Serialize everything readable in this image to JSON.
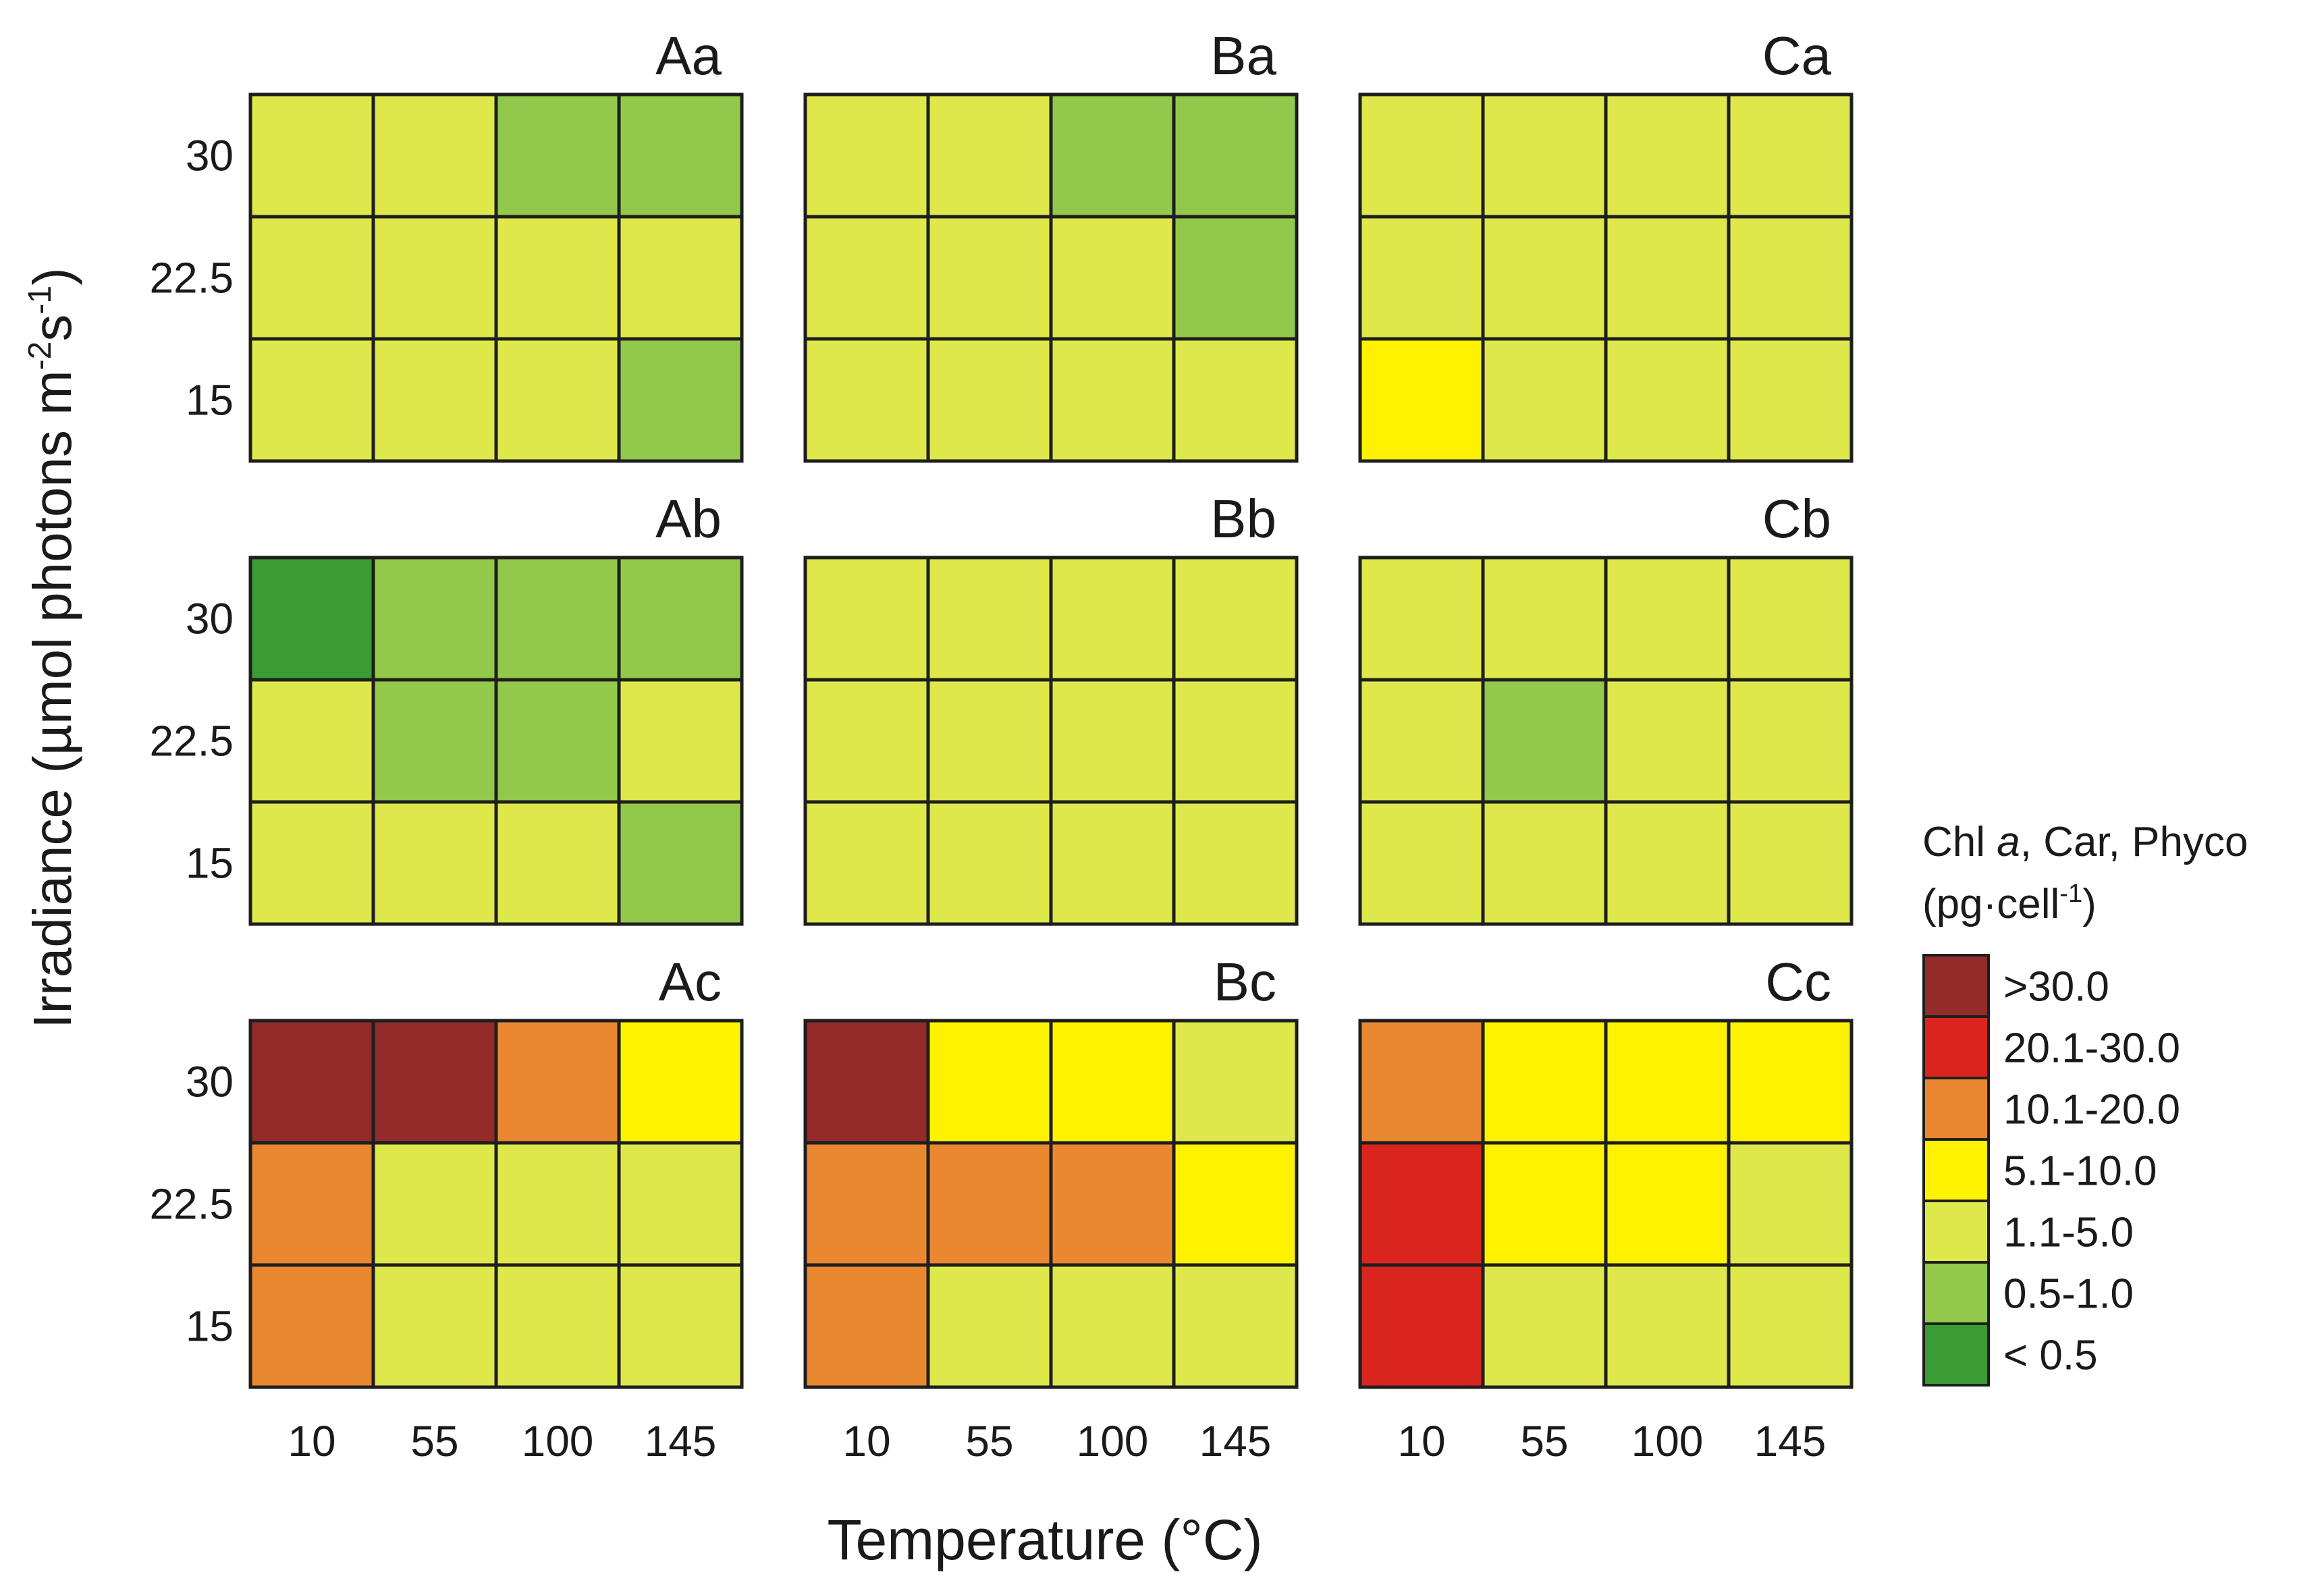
{
  "chart_data": {
    "type": "heatmap",
    "xlabel": "Temperature (°C)",
    "ylabel": {
      "main": "Irradiance (µmol photons m",
      "sup1": "-2",
      "mid": "s",
      "sup2": "-1",
      "end": ")"
    },
    "x_ticks": [
      "10",
      "55",
      "100",
      "145"
    ],
    "y_ticks": [
      "30",
      "22.5",
      "15"
    ],
    "legend": {
      "title_line1": {
        "pre": "Chl ",
        "italic": "a",
        "post": ", Car, Phyco"
      },
      "title_line2": {
        "pre": "(pg·cell",
        "sup": "-1",
        "post": ")"
      },
      "classes": [
        {
          "label": ">30.0",
          "color": "#922b2a"
        },
        {
          "label": "20.1-30.0",
          "color": "#d9251e"
        },
        {
          "label": "10.1-20.0",
          "color": "#e98831"
        },
        {
          "label": "5.1-10.0",
          "color": "#fff200"
        },
        {
          "label": "1.1-5.0",
          "color": "#dfe84b"
        },
        {
          "label": "0.5-1.0",
          "color": "#92c94a"
        },
        {
          "label": "< 0.5",
          "color": "#3a9c35"
        }
      ]
    },
    "panels": [
      {
        "title": "Aa",
        "rows": [
          [
            "1.1-5.0",
            "1.1-5.0",
            "0.5-1.0",
            "0.5-1.0"
          ],
          [
            "1.1-5.0",
            "1.1-5.0",
            "1.1-5.0",
            "1.1-5.0"
          ],
          [
            "1.1-5.0",
            "1.1-5.0",
            "1.1-5.0",
            "0.5-1.0"
          ]
        ]
      },
      {
        "title": "Ba",
        "rows": [
          [
            "1.1-5.0",
            "1.1-5.0",
            "0.5-1.0",
            "0.5-1.0"
          ],
          [
            "1.1-5.0",
            "1.1-5.0",
            "1.1-5.0",
            "0.5-1.0"
          ],
          [
            "1.1-5.0",
            "1.1-5.0",
            "1.1-5.0",
            "1.1-5.0"
          ]
        ]
      },
      {
        "title": "Ca",
        "rows": [
          [
            "1.1-5.0",
            "1.1-5.0",
            "1.1-5.0",
            "1.1-5.0"
          ],
          [
            "1.1-5.0",
            "1.1-5.0",
            "1.1-5.0",
            "1.1-5.0"
          ],
          [
            "5.1-10.0",
            "1.1-5.0",
            "1.1-5.0",
            "1.1-5.0"
          ]
        ]
      },
      {
        "title": "Ab",
        "rows": [
          [
            "< 0.5",
            "0.5-1.0",
            "0.5-1.0",
            "0.5-1.0"
          ],
          [
            "1.1-5.0",
            "0.5-1.0",
            "0.5-1.0",
            "1.1-5.0"
          ],
          [
            "1.1-5.0",
            "1.1-5.0",
            "1.1-5.0",
            "0.5-1.0"
          ]
        ]
      },
      {
        "title": "Bb",
        "rows": [
          [
            "1.1-5.0",
            "1.1-5.0",
            "1.1-5.0",
            "1.1-5.0"
          ],
          [
            "1.1-5.0",
            "1.1-5.0",
            "1.1-5.0",
            "1.1-5.0"
          ],
          [
            "1.1-5.0",
            "1.1-5.0",
            "1.1-5.0",
            "1.1-5.0"
          ]
        ]
      },
      {
        "title": "Cb",
        "rows": [
          [
            "1.1-5.0",
            "1.1-5.0",
            "1.1-5.0",
            "1.1-5.0"
          ],
          [
            "1.1-5.0",
            "0.5-1.0",
            "1.1-5.0",
            "1.1-5.0"
          ],
          [
            "1.1-5.0",
            "1.1-5.0",
            "1.1-5.0",
            "1.1-5.0"
          ]
        ]
      },
      {
        "title": "Ac",
        "rows": [
          [
            ">30.0",
            ">30.0",
            "10.1-20.0",
            "5.1-10.0"
          ],
          [
            "10.1-20.0",
            "1.1-5.0",
            "1.1-5.0",
            "1.1-5.0"
          ],
          [
            "10.1-20.0",
            "1.1-5.0",
            "1.1-5.0",
            "1.1-5.0"
          ]
        ]
      },
      {
        "title": "Bc",
        "rows": [
          [
            ">30.0",
            "5.1-10.0",
            "5.1-10.0",
            "1.1-5.0"
          ],
          [
            "10.1-20.0",
            "10.1-20.0",
            "10.1-20.0",
            "5.1-10.0"
          ],
          [
            "10.1-20.0",
            "1.1-5.0",
            "1.1-5.0",
            "1.1-5.0"
          ]
        ]
      },
      {
        "title": "Cc",
        "rows": [
          [
            "10.1-20.0",
            "5.1-10.0",
            "5.1-10.0",
            "5.1-10.0"
          ],
          [
            "20.1-30.0",
            "5.1-10.0",
            "5.1-10.0",
            "1.1-5.0"
          ],
          [
            "20.1-30.0",
            "1.1-5.0",
            "1.1-5.0",
            "1.1-5.0"
          ]
        ]
      }
    ]
  }
}
